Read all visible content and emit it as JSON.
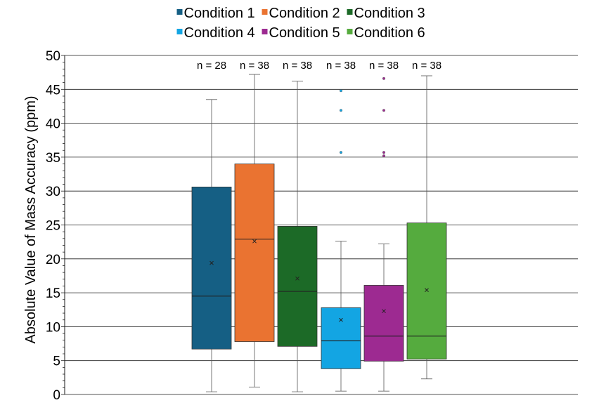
{
  "chart_data": {
    "type": "box",
    "ylabel": "Absolute Value of Mass Accuracy (ppm)",
    "ylim": [
      0,
      50
    ],
    "yticks": [
      0,
      5,
      10,
      15,
      20,
      25,
      30,
      35,
      40,
      45,
      50
    ],
    "grid": true,
    "legend_position": "top",
    "series": [
      {
        "name": "Condition 1",
        "color": "#155f84",
        "n_label": "n = 28",
        "min": 0.4,
        "q1": 6.7,
        "median": 14.5,
        "q3": 30.6,
        "max": 43.5,
        "mean": 19.4,
        "outliers": []
      },
      {
        "name": "Condition 2",
        "color": "#ea7331",
        "n_label": "n = 38",
        "min": 1.1,
        "q1": 7.8,
        "median": 22.9,
        "q3": 34.0,
        "max": 47.2,
        "mean": 22.6,
        "outliers": []
      },
      {
        "name": "Condition 3",
        "color": "#1c6a27",
        "n_label": "n = 38",
        "min": 0.4,
        "q1": 7.1,
        "median": 15.2,
        "q3": 24.8,
        "max": 46.2,
        "mean": 17.1,
        "outliers": []
      },
      {
        "name": "Condition 4",
        "color": "#13a5e3",
        "n_label": "n = 38",
        "min": 0.5,
        "q1": 3.8,
        "median": 7.9,
        "q3": 12.8,
        "max": 22.6,
        "mean": 11.0,
        "outliers": [
          35.7,
          41.9,
          44.8
        ]
      },
      {
        "name": "Condition 5",
        "color": "#9d2a91",
        "n_label": "n = 38",
        "min": 0.5,
        "q1": 4.9,
        "median": 8.6,
        "q3": 16.1,
        "max": 22.2,
        "mean": 12.3,
        "outliers": [
          35.2,
          35.7,
          41.9,
          46.6
        ]
      },
      {
        "name": "Condition 6",
        "color": "#55ab3e",
        "n_label": "n = 38",
        "min": 2.3,
        "q1": 5.2,
        "median": 8.6,
        "q3": 25.3,
        "max": 47.0,
        "mean": 15.4,
        "outliers": []
      }
    ]
  }
}
